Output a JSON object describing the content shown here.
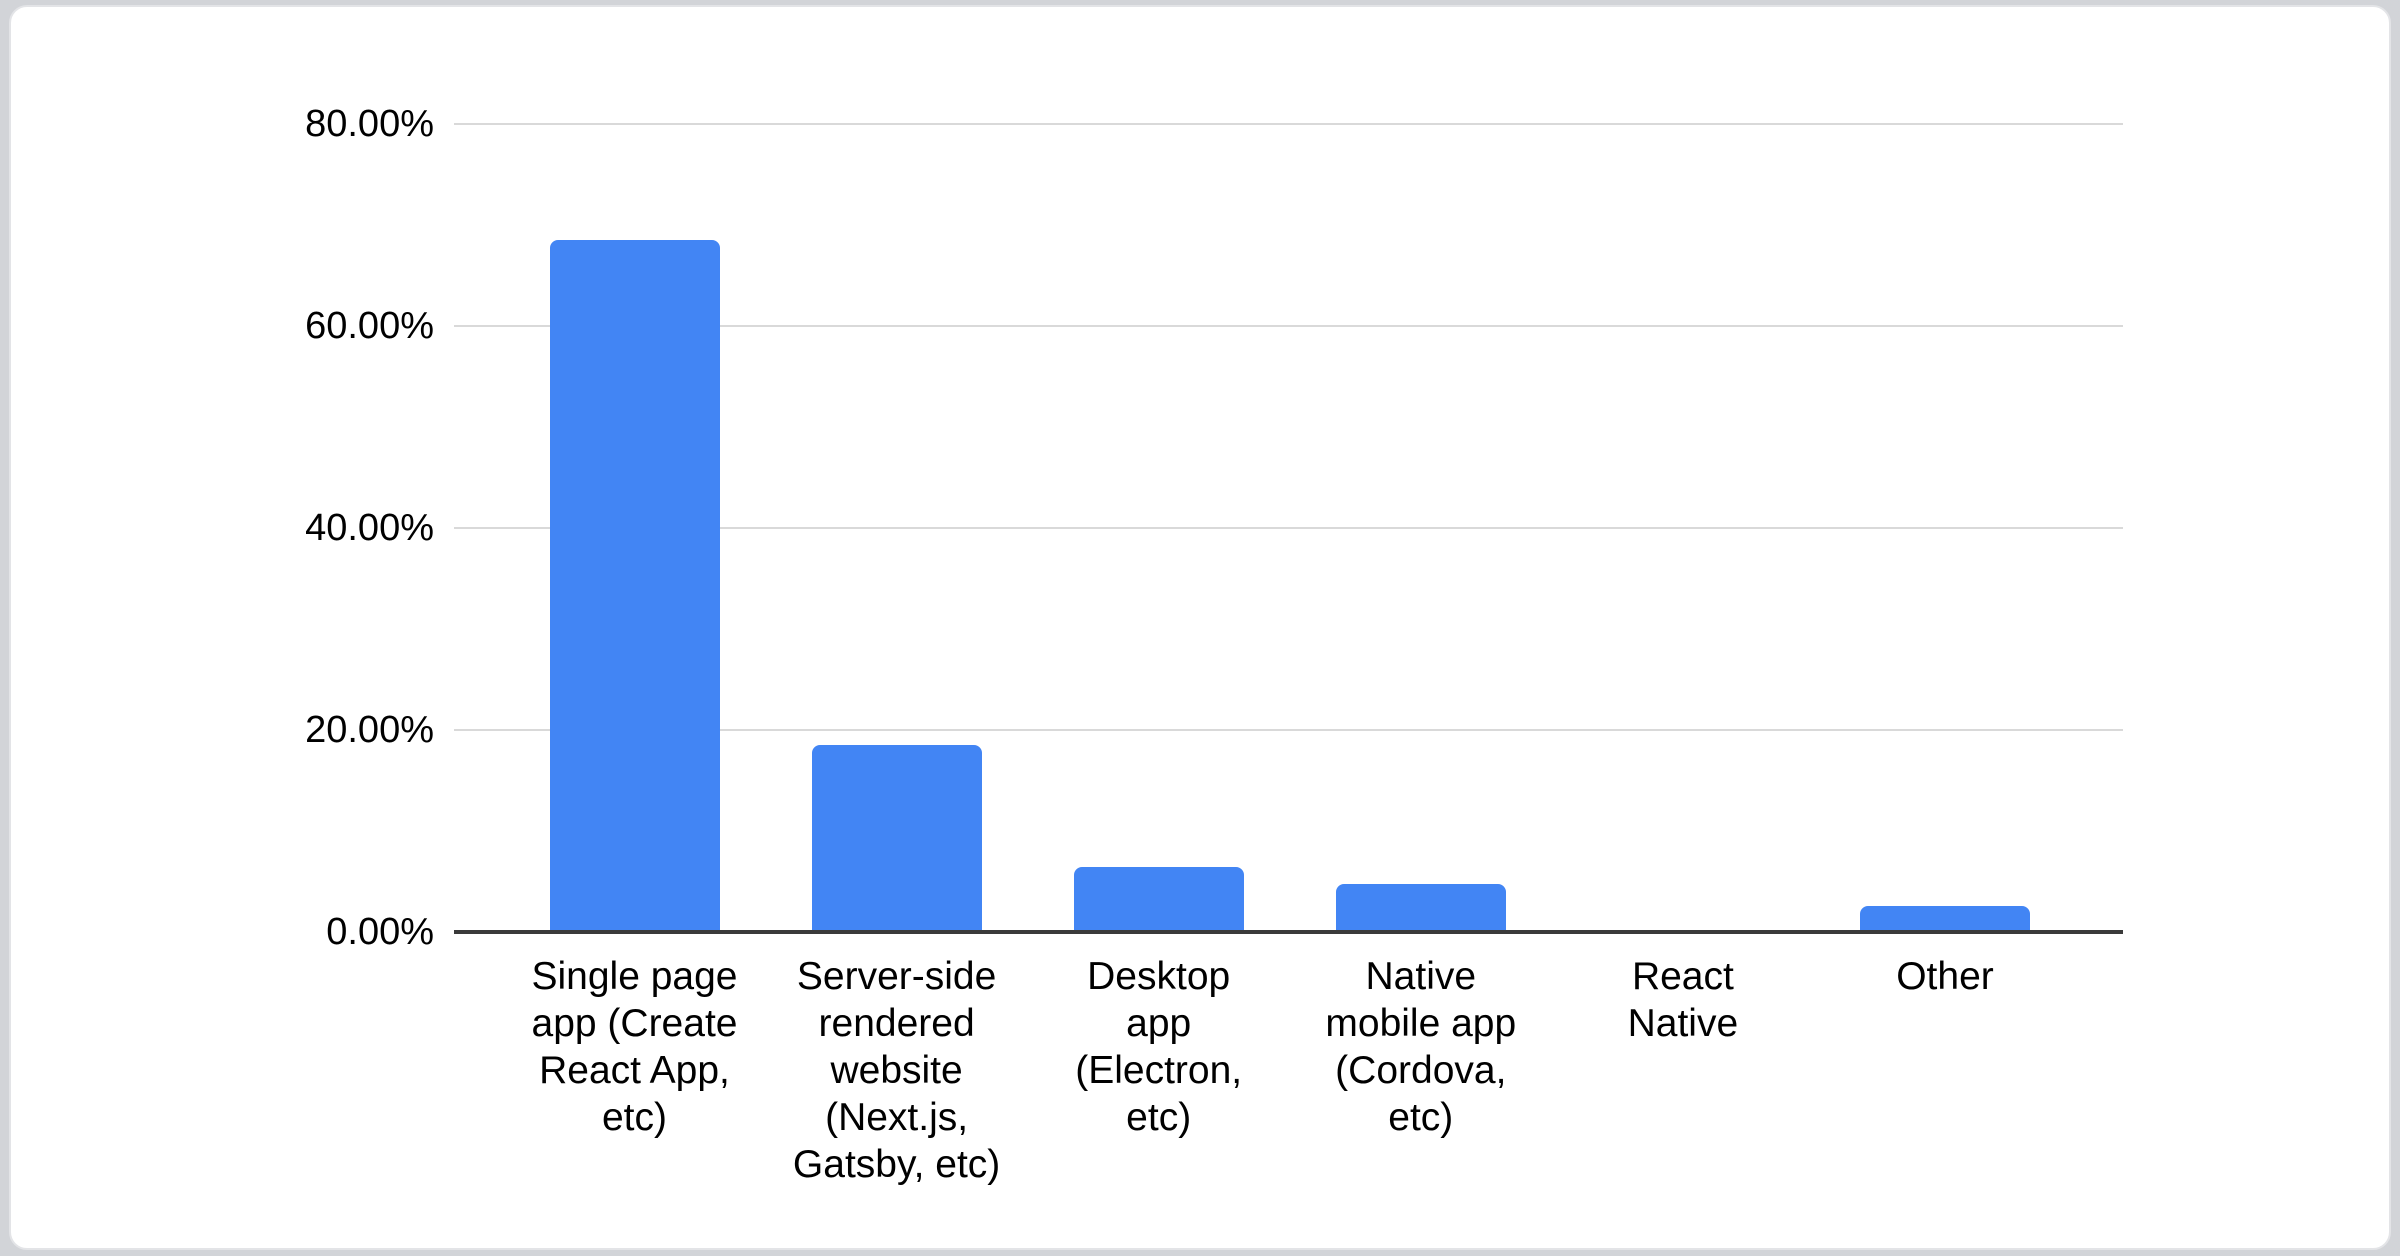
{
  "chart_data": {
    "type": "bar",
    "title": "",
    "xlabel": "",
    "ylabel": "",
    "categories": [
      "Single page app (Create React App, etc)",
      "Server-side rendered website (Next.js, Gatsby, etc)",
      "Desktop app (Electron, etc)",
      "Native mobile app (Cordova, etc)",
      "React Native",
      "Other"
    ],
    "category_label_lines": [
      [
        "Single page",
        "app (Create",
        "React App,",
        "etc)"
      ],
      [
        "Server-side",
        "rendered",
        "website",
        "(Next.js,",
        "Gatsby, etc)"
      ],
      [
        "Desktop",
        "app",
        "(Electron,",
        "etc)"
      ],
      [
        "Native",
        "mobile app",
        "(Cordova,",
        "etc)"
      ],
      [
        "React",
        "Native"
      ],
      [
        "Other"
      ]
    ],
    "values": [
      68.5,
      18.5,
      6.4,
      4.8,
      0,
      2.6
    ],
    "ylim": [
      0,
      80
    ],
    "yticks": [
      0,
      20,
      40,
      60,
      80
    ],
    "ytick_labels": [
      "0.00%",
      "20.00%",
      "40.00%",
      "60.00%",
      "80.00%"
    ],
    "grid": true,
    "legend": false
  },
  "colors": {
    "bar": "#4285f4",
    "gridline": "#d9d9d9",
    "axis": "#3a3a3a",
    "text": "#000000",
    "card_background": "#ffffff",
    "page_background": "#d2d4d8"
  }
}
